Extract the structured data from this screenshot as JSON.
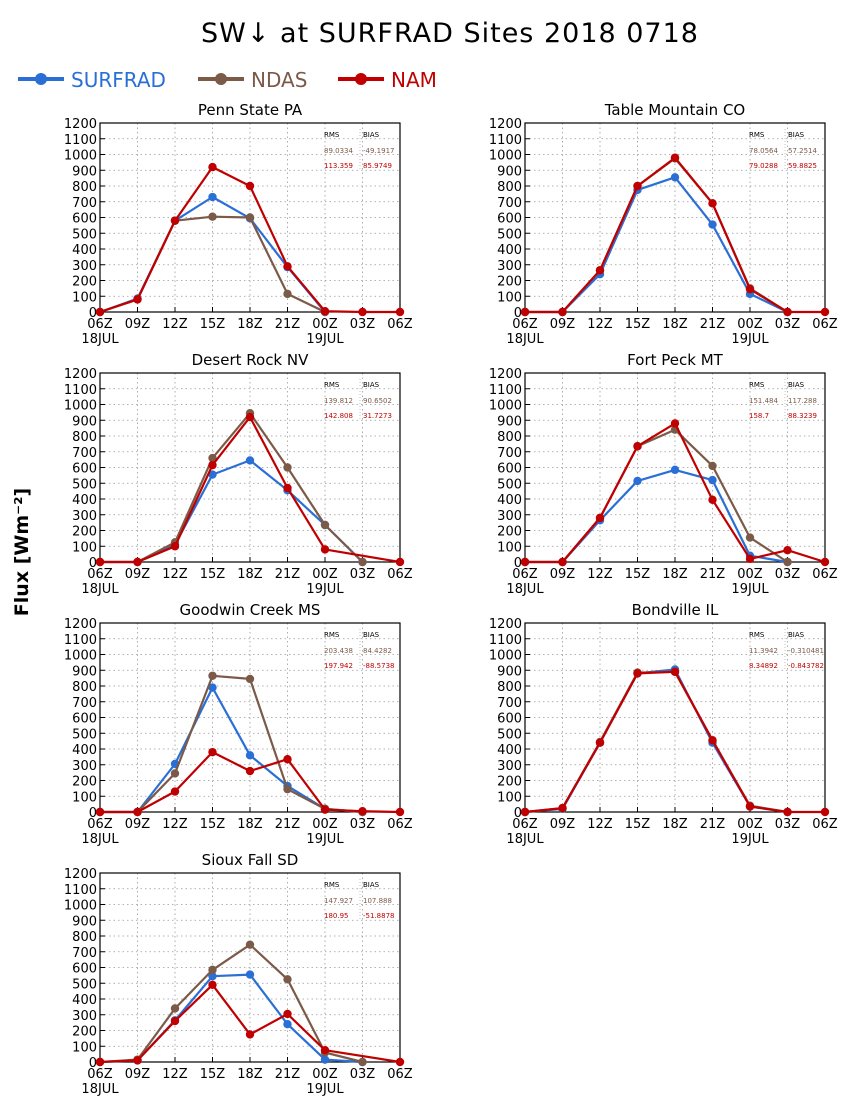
{
  "title": "SW↓ at SURFRAD Sites    2018 0718",
  "ylabel": "Flux [Wm⁻²]",
  "legend": [
    {
      "name": "SURFRAD",
      "color": "#2a6fd6"
    },
    {
      "name": "NDAS",
      "color": "#7b5a48"
    },
    {
      "name": "NAM",
      "color": "#c00000"
    }
  ],
  "stats_headers": [
    "RMS",
    "BIAS"
  ],
  "chart_data": [
    {
      "type": "line",
      "title": "Penn State PA",
      "x": [
        "06Z",
        "09Z",
        "12Z",
        "15Z",
        "18Z",
        "21Z",
        "00Z",
        "03Z",
        "06Z"
      ],
      "x_date_labels": {
        "0": "18JUL",
        "6": "19JUL"
      },
      "ylim": [
        0,
        1200
      ],
      "yticks": [
        0,
        100,
        200,
        300,
        400,
        500,
        600,
        700,
        800,
        900,
        1000,
        1100,
        1200
      ],
      "grid": true,
      "series": [
        {
          "name": "SURFRAD",
          "color": "#2a6fd6",
          "values": [
            0,
            85,
            580,
            730,
            595,
            285,
            0,
            null,
            null
          ]
        },
        {
          "name": "NDAS",
          "color": "#7b5a48",
          "values": [
            0,
            80,
            580,
            605,
            600,
            115,
            0,
            null,
            null
          ]
        },
        {
          "name": "NAM",
          "color": "#c00000",
          "values": [
            0,
            80,
            580,
            920,
            800,
            290,
            5,
            0,
            0
          ]
        }
      ],
      "stats": [
        [
          "89.0334",
          "-49.1917"
        ],
        [
          "113.359",
          "85.9749"
        ]
      ]
    },
    {
      "type": "line",
      "title": "Table Mountain CO",
      "x": [
        "06Z",
        "09Z",
        "12Z",
        "15Z",
        "18Z",
        "21Z",
        "00Z",
        "03Z",
        "06Z"
      ],
      "x_date_labels": {
        "0": "18JUL",
        "6": "19JUL"
      },
      "ylim": [
        0,
        1200
      ],
      "yticks": [
        0,
        100,
        200,
        300,
        400,
        500,
        600,
        700,
        800,
        900,
        1000,
        1100,
        1200
      ],
      "grid": true,
      "series": [
        {
          "name": "SURFRAD",
          "color": "#2a6fd6",
          "values": [
            0,
            0,
            240,
            775,
            855,
            555,
            115,
            0,
            null
          ]
        },
        {
          "name": "NDAS",
          "color": "#7b5a48",
          "values": [
            0,
            0,
            265,
            800,
            975,
            690,
            150,
            0,
            null
          ]
        },
        {
          "name": "NAM",
          "color": "#c00000",
          "values": [
            0,
            0,
            265,
            800,
            980,
            690,
            145,
            0,
            0
          ]
        }
      ],
      "stats": [
        [
          "78.0564",
          "57.2514"
        ],
        [
          "79.0288",
          "59.8825"
        ]
      ]
    },
    {
      "type": "line",
      "title": "Desert Rock NV",
      "x": [
        "06Z",
        "09Z",
        "12Z",
        "15Z",
        "18Z",
        "21Z",
        "00Z",
        "03Z",
        "06Z"
      ],
      "x_date_labels": {
        "0": "18JUL",
        "6": "19JUL"
      },
      "ylim": [
        0,
        1200
      ],
      "yticks": [
        0,
        100,
        200,
        300,
        400,
        500,
        600,
        700,
        800,
        900,
        1000,
        1100,
        1200
      ],
      "grid": true,
      "series": [
        {
          "name": "SURFRAD",
          "color": "#2a6fd6",
          "values": [
            0,
            0,
            110,
            555,
            645,
            455,
            235,
            0,
            null
          ]
        },
        {
          "name": "NDAS",
          "color": "#7b5a48",
          "values": [
            0,
            0,
            125,
            660,
            945,
            600,
            235,
            0,
            null
          ]
        },
        {
          "name": "NAM",
          "color": "#c00000",
          "values": [
            0,
            0,
            100,
            615,
            920,
            470,
            80,
            null,
            0
          ]
        }
      ],
      "stats": [
        [
          "139.812",
          "90.6502"
        ],
        [
          "142.808",
          "31.7273"
        ]
      ]
    },
    {
      "type": "line",
      "title": "Fort Peck MT",
      "x": [
        "06Z",
        "09Z",
        "12Z",
        "15Z",
        "18Z",
        "21Z",
        "00Z",
        "03Z",
        "06Z"
      ],
      "x_date_labels": {
        "0": "18JUL",
        "6": "19JUL"
      },
      "ylim": [
        0,
        1200
      ],
      "yticks": [
        0,
        100,
        200,
        300,
        400,
        500,
        600,
        700,
        800,
        900,
        1000,
        1100,
        1200
      ],
      "grid": true,
      "series": [
        {
          "name": "SURFRAD",
          "color": "#2a6fd6",
          "values": [
            0,
            0,
            265,
            515,
            585,
            520,
            40,
            0,
            null
          ]
        },
        {
          "name": "NDAS",
          "color": "#7b5a48",
          "values": [
            0,
            0,
            280,
            735,
            840,
            610,
            155,
            0,
            null
          ]
        },
        {
          "name": "NAM",
          "color": "#c00000",
          "values": [
            0,
            0,
            280,
            735,
            880,
            395,
            20,
            75,
            0
          ]
        }
      ],
      "stats": [
        [
          "151.484",
          "117.288"
        ],
        [
          "158.7",
          "88.3239"
        ]
      ]
    },
    {
      "type": "line",
      "title": "Goodwin Creek MS",
      "x": [
        "06Z",
        "09Z",
        "12Z",
        "15Z",
        "18Z",
        "21Z",
        "00Z",
        "03Z",
        "06Z"
      ],
      "x_date_labels": {
        "0": "18JUL",
        "6": "19JUL"
      },
      "ylim": [
        0,
        1200
      ],
      "yticks": [
        0,
        100,
        200,
        300,
        400,
        500,
        600,
        700,
        800,
        900,
        1000,
        1100,
        1200
      ],
      "grid": true,
      "series": [
        {
          "name": "SURFRAD",
          "color": "#2a6fd6",
          "values": [
            0,
            0,
            305,
            790,
            360,
            165,
            20,
            0,
            null
          ]
        },
        {
          "name": "NDAS",
          "color": "#7b5a48",
          "values": [
            0,
            0,
            245,
            865,
            845,
            145,
            20,
            0,
            null
          ]
        },
        {
          "name": "NAM",
          "color": "#c00000",
          "values": [
            0,
            0,
            130,
            380,
            260,
            335,
            15,
            5,
            0
          ]
        }
      ],
      "stats": [
        [
          "203.438",
          "84.4282"
        ],
        [
          "197.942",
          "-88.5738"
        ]
      ]
    },
    {
      "type": "line",
      "title": "Bondville IL",
      "x": [
        "06Z",
        "09Z",
        "12Z",
        "15Z",
        "18Z",
        "21Z",
        "00Z",
        "03Z",
        "06Z"
      ],
      "x_date_labels": {
        "0": "18JUL",
        "6": "19JUL"
      },
      "ylim": [
        0,
        1200
      ],
      "yticks": [
        0,
        100,
        200,
        300,
        400,
        500,
        600,
        700,
        800,
        900,
        1000,
        1100,
        1200
      ],
      "grid": true,
      "series": [
        {
          "name": "SURFRAD",
          "color": "#2a6fd6",
          "values": [
            0,
            20,
            440,
            880,
            905,
            440,
            35,
            0,
            null
          ]
        },
        {
          "name": "NDAS",
          "color": "#7b5a48",
          "values": [
            0,
            25,
            445,
            885,
            890,
            455,
            40,
            0,
            null
          ]
        },
        {
          "name": "NAM",
          "color": "#c00000",
          "values": [
            0,
            25,
            440,
            880,
            890,
            455,
            35,
            0,
            0
          ]
        }
      ],
      "stats": [
        [
          "11.3942",
          "-0.310481"
        ],
        [
          "8.34892",
          "-0.843782"
        ]
      ]
    },
    {
      "type": "line",
      "title": "Sioux Fall SD",
      "x": [
        "06Z",
        "09Z",
        "12Z",
        "15Z",
        "18Z",
        "21Z",
        "00Z",
        "03Z",
        "06Z"
      ],
      "x_date_labels": {
        "0": "18JUL",
        "6": "19JUL"
      },
      "ylim": [
        0,
        1200
      ],
      "yticks": [
        0,
        100,
        200,
        300,
        400,
        500,
        600,
        700,
        800,
        900,
        1000,
        1100,
        1200
      ],
      "grid": true,
      "series": [
        {
          "name": "SURFRAD",
          "color": "#2a6fd6",
          "values": [
            0,
            10,
            265,
            545,
            555,
            240,
            15,
            0,
            null
          ]
        },
        {
          "name": "NDAS",
          "color": "#7b5a48",
          "values": [
            0,
            15,
            340,
            585,
            745,
            525,
            60,
            0,
            null
          ]
        },
        {
          "name": "NAM",
          "color": "#c00000",
          "values": [
            0,
            10,
            260,
            490,
            175,
            305,
            75,
            null,
            0
          ]
        }
      ],
      "stats": [
        [
          "147.927",
          "107.888"
        ],
        [
          "180.95",
          "-51.8878"
        ]
      ]
    }
  ]
}
